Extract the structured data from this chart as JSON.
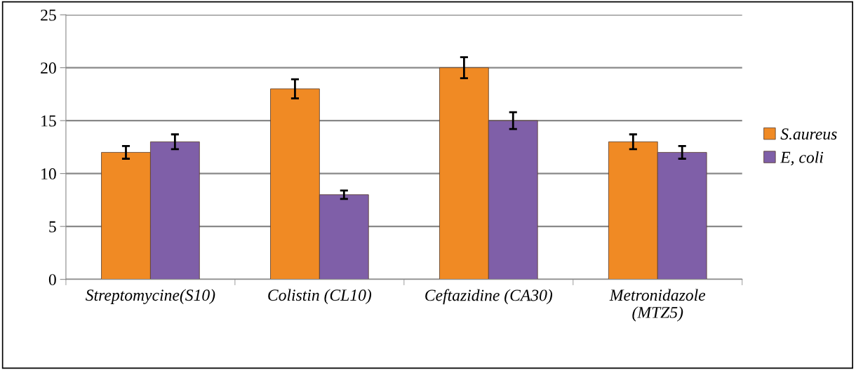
{
  "chart_data": {
    "type": "bar",
    "categories": [
      "Streptomycine(S10)",
      "Colistin (CL10)",
      "Ceftazidine (CA30)",
      "Metronidazole\n(MTZ5)"
    ],
    "series": [
      {
        "name": "S.aureus",
        "color": "#f08a24",
        "values": [
          12,
          18,
          20,
          13
        ],
        "errors": [
          0.6,
          0.9,
          1.0,
          0.7
        ]
      },
      {
        "name": "E, coli",
        "color": "#7f5fa8",
        "values": [
          13,
          8,
          15,
          12
        ],
        "errors": [
          0.7,
          0.4,
          0.8,
          0.6
        ]
      }
    ],
    "ylim": [
      0,
      25
    ],
    "yticks": [
      0,
      5,
      10,
      15,
      20,
      25
    ],
    "grid": "y",
    "legend": "right"
  }
}
